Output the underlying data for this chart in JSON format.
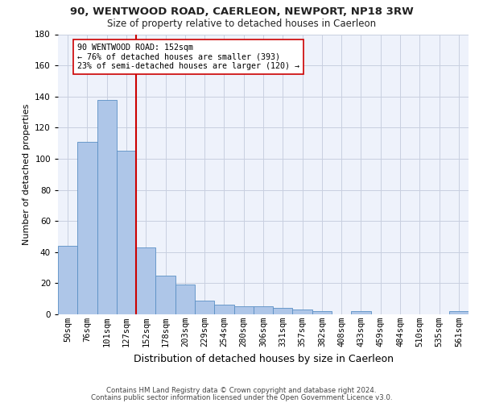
{
  "title1": "90, WENTWOOD ROAD, CAERLEON, NEWPORT, NP18 3RW",
  "title2": "Size of property relative to detached houses in Caerleon",
  "xlabel": "Distribution of detached houses by size in Caerleon",
  "ylabel": "Number of detached properties",
  "bin_labels": [
    "50sqm",
    "76sqm",
    "101sqm",
    "127sqm",
    "152sqm",
    "178sqm",
    "203sqm",
    "229sqm",
    "254sqm",
    "280sqm",
    "306sqm",
    "331sqm",
    "357sqm",
    "382sqm",
    "408sqm",
    "433sqm",
    "459sqm",
    "484sqm",
    "510sqm",
    "535sqm",
    "561sqm"
  ],
  "bar_heights": [
    44,
    111,
    138,
    105,
    43,
    25,
    19,
    9,
    6,
    5,
    5,
    4,
    3,
    2,
    0,
    2,
    0,
    0,
    0,
    0,
    2
  ],
  "bar_color": "#aec6e8",
  "bar_edge_color": "#5a8fc4",
  "vline_x_index": 4,
  "vline_color": "#cc0000",
  "annotation_line1": "90 WENTWOOD ROAD: 152sqm",
  "annotation_line2": "← 76% of detached houses are smaller (393)",
  "annotation_line3": "23% of semi-detached houses are larger (120) →",
  "annotation_box_color": "#ffffff",
  "annotation_box_edge": "#cc0000",
  "footer1": "Contains HM Land Registry data © Crown copyright and database right 2024.",
  "footer2": "Contains public sector information licensed under the Open Government Licence v3.0.",
  "ylim": [
    0,
    180
  ],
  "yticks": [
    0,
    20,
    40,
    60,
    80,
    100,
    120,
    140,
    160,
    180
  ],
  "background_color": "#eef2fb",
  "grid_color": "#c8cfe0",
  "title1_fontsize": 9.5,
  "title2_fontsize": 8.5,
  "ylabel_fontsize": 8,
  "xlabel_fontsize": 9,
  "tick_fontsize": 7.5
}
